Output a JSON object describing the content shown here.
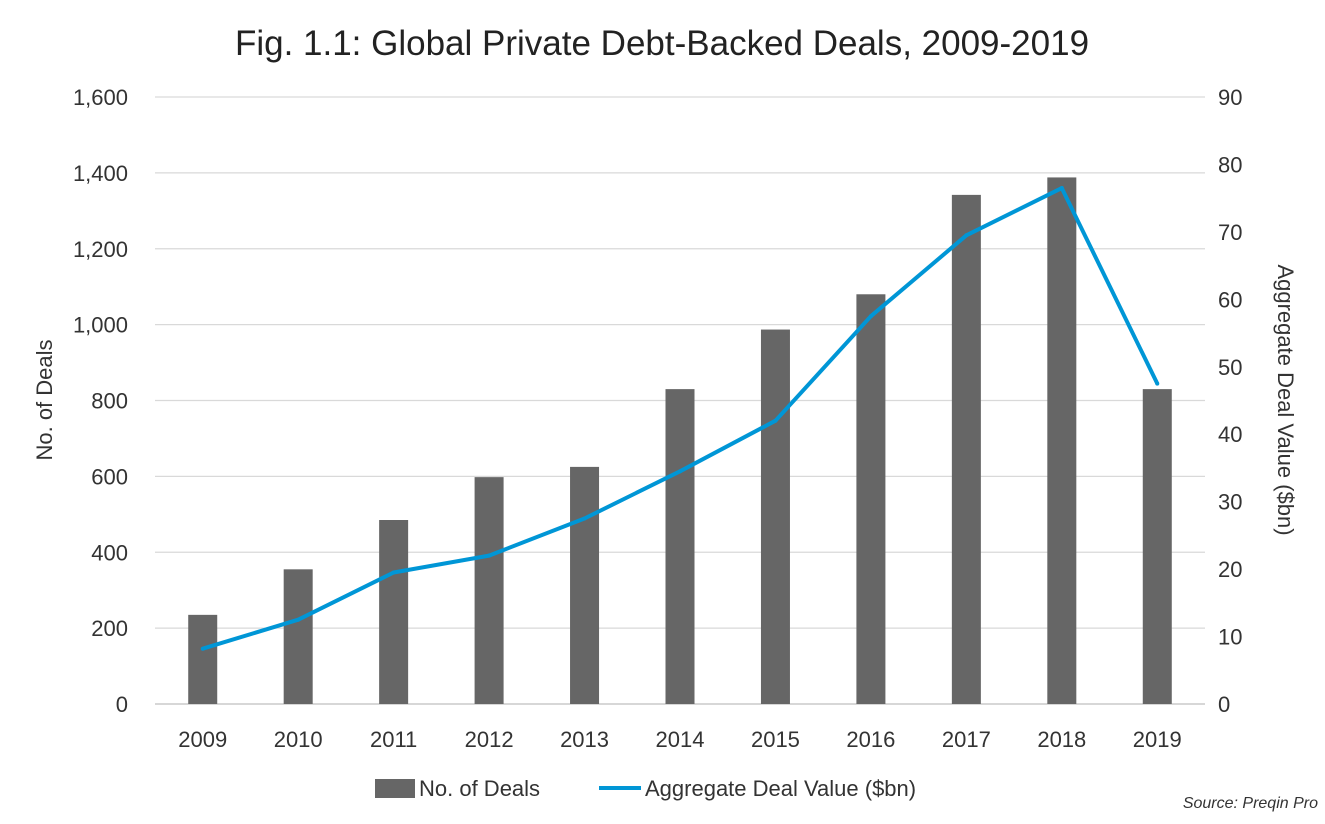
{
  "chart_data": {
    "type": "bar",
    "title": "Fig. 1.1: Global Private Debt-Backed Deals, 2009-2019",
    "categories": [
      "2009",
      "2010",
      "2011",
      "2012",
      "2013",
      "2014",
      "2015",
      "2016",
      "2017",
      "2018",
      "2019"
    ],
    "series": [
      {
        "name": "No. of Deals",
        "type": "bar",
        "axis": "left",
        "color": "#666666",
        "values": [
          235,
          355,
          485,
          598,
          625,
          830,
          987,
          1080,
          1342,
          1388,
          830
        ]
      },
      {
        "name": "Aggregate Deal Value ($bn)",
        "type": "line",
        "axis": "right",
        "color": "#0096d6",
        "values": [
          8.2,
          12.5,
          19.5,
          22.0,
          27.5,
          34.5,
          42.0,
          57.5,
          69.5,
          76.5,
          47.5
        ]
      }
    ],
    "ylabel": "No. of Deals",
    "ylabel_right": "Aggregate Deal Value ($bn)",
    "ylim": [
      0,
      1600
    ],
    "ylim_right": [
      0,
      90
    ],
    "yticks": [
      "0",
      "200",
      "400",
      "600",
      "800",
      "1,000",
      "1,200",
      "1,400",
      "1,600"
    ],
    "yticks_right": [
      "0",
      "10",
      "20",
      "30",
      "40",
      "50",
      "60",
      "70",
      "80",
      "90"
    ],
    "grid": true,
    "legend_position": "bottom",
    "source": "Source: Preqin Pro"
  }
}
